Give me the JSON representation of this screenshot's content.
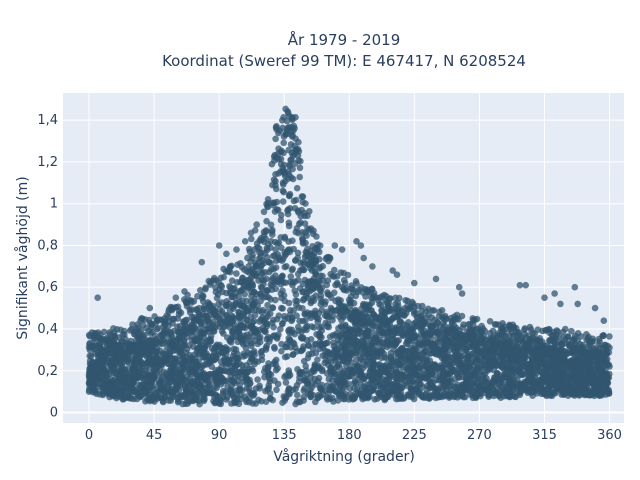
{
  "chart_data": {
    "type": "scatter",
    "title_line1": "År 1979 - 2019",
    "title_line2": "Koordinat (Sweref 99 TM): E 467417, N 6208524",
    "xlabel": "Vågriktning (grader)",
    "ylabel": "Signifikant våghöjd (m)",
    "xlim": [
      -18,
      370
    ],
    "ylim": [
      -0.05,
      1.53
    ],
    "xticks": [
      0,
      45,
      90,
      135,
      180,
      225,
      270,
      315,
      360
    ],
    "xtick_labels": [
      "0",
      "45",
      "90",
      "135",
      "180",
      "225",
      "270",
      "315",
      "360"
    ],
    "yticks": [
      0,
      0.2,
      0.4,
      0.6,
      0.8,
      1.0,
      1.2,
      1.4
    ],
    "ytick_labels": [
      "0",
      "0,2",
      "0,4",
      "0,6",
      "0,8",
      "1",
      "1,2",
      "1,4"
    ],
    "grid": true,
    "plot_bgcolor": "#e5ecf6",
    "marker_color": "#31566f",
    "envelope": {
      "direction": [
        0,
        10,
        20,
        30,
        40,
        50,
        60,
        70,
        80,
        90,
        100,
        110,
        120,
        125,
        130,
        135,
        140,
        145,
        150,
        155,
        160,
        170,
        180,
        190,
        200,
        210,
        220,
        230,
        240,
        250,
        260,
        270,
        280,
        290,
        300,
        310,
        320,
        330,
        340,
        350,
        360
      ],
      "min_height": [
        0.1,
        0.08,
        0.06,
        0.06,
        0.05,
        0.05,
        0.04,
        0.04,
        0.04,
        0.04,
        0.04,
        0.04,
        0.04,
        0.04,
        0.04,
        0.04,
        0.04,
        0.04,
        0.04,
        0.04,
        0.05,
        0.05,
        0.06,
        0.06,
        0.06,
        0.06,
        0.06,
        0.06,
        0.07,
        0.07,
        0.07,
        0.07,
        0.07,
        0.07,
        0.08,
        0.08,
        0.08,
        0.08,
        0.08,
        0.08,
        0.08
      ],
      "max_height": [
        0.38,
        0.4,
        0.42,
        0.44,
        0.46,
        0.48,
        0.52,
        0.58,
        0.62,
        0.68,
        0.72,
        0.8,
        0.95,
        1.15,
        1.4,
        1.5,
        1.5,
        1.35,
        1.05,
        0.9,
        0.8,
        0.72,
        0.66,
        0.62,
        0.58,
        0.56,
        0.54,
        0.52,
        0.5,
        0.48,
        0.46,
        0.45,
        0.44,
        0.43,
        0.42,
        0.4,
        0.4,
        0.4,
        0.38,
        0.38,
        0.38
      ],
      "core_height": [
        0.3,
        0.3,
        0.31,
        0.32,
        0.34,
        0.36,
        0.38,
        0.4,
        0.44,
        0.48,
        0.54,
        0.62,
        0.76,
        0.9,
        1.1,
        1.3,
        1.35,
        1.15,
        0.85,
        0.7,
        0.6,
        0.52,
        0.48,
        0.46,
        0.44,
        0.42,
        0.41,
        0.4,
        0.39,
        0.38,
        0.36,
        0.35,
        0.33,
        0.32,
        0.31,
        0.3,
        0.3,
        0.29,
        0.29,
        0.28,
        0.28
      ]
    },
    "outliers": [
      {
        "x": 6,
        "y": 0.55
      },
      {
        "x": 78,
        "y": 0.72
      },
      {
        "x": 90,
        "y": 0.8
      },
      {
        "x": 95,
        "y": 0.76
      },
      {
        "x": 102,
        "y": 0.78
      },
      {
        "x": 108,
        "y": 0.82
      },
      {
        "x": 112,
        "y": 0.86
      },
      {
        "x": 116,
        "y": 0.9
      },
      {
        "x": 170,
        "y": 0.8
      },
      {
        "x": 175,
        "y": 0.78
      },
      {
        "x": 185,
        "y": 0.82
      },
      {
        "x": 188,
        "y": 0.8
      },
      {
        "x": 190,
        "y": 0.74
      },
      {
        "x": 196,
        "y": 0.7
      },
      {
        "x": 210,
        "y": 0.68
      },
      {
        "x": 213,
        "y": 0.66
      },
      {
        "x": 225,
        "y": 0.62
      },
      {
        "x": 240,
        "y": 0.64
      },
      {
        "x": 256,
        "y": 0.6
      },
      {
        "x": 258,
        "y": 0.57
      },
      {
        "x": 298,
        "y": 0.61
      },
      {
        "x": 302,
        "y": 0.61
      },
      {
        "x": 322,
        "y": 0.57
      },
      {
        "x": 336,
        "y": 0.6
      },
      {
        "x": 350,
        "y": 0.5
      },
      {
        "x": 356,
        "y": 0.44
      },
      {
        "x": 338,
        "y": 0.52
      },
      {
        "x": 326,
        "y": 0.52
      },
      {
        "x": 315,
        "y": 0.55
      },
      {
        "x": 42,
        "y": 0.5
      },
      {
        "x": 66,
        "y": 0.58
      },
      {
        "x": 60,
        "y": 0.55
      }
    ]
  }
}
